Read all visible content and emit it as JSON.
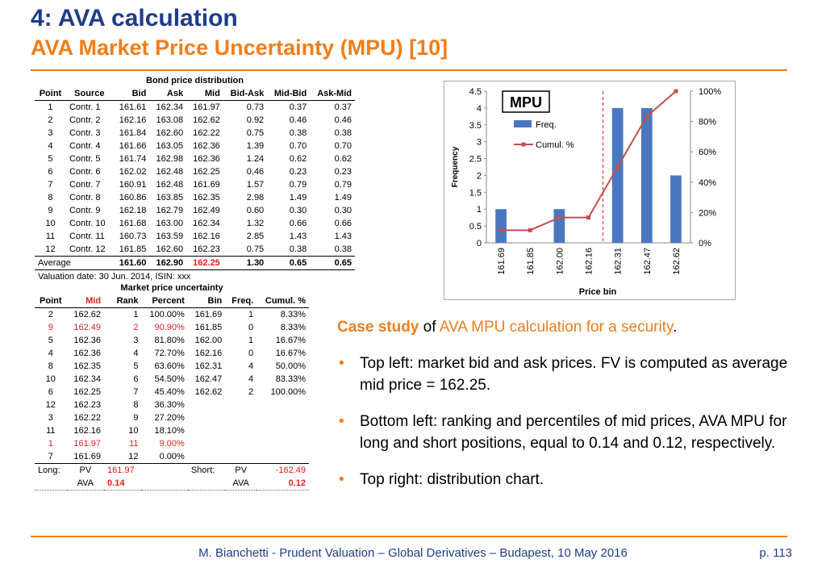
{
  "title": "4: AVA calculation",
  "subtitle": "AVA Market Price Uncertainty (MPU) [10]",
  "footer": "M. Bianchetti - Prudent Valuation – Global Derivatives – Budapest, 10 May 2016",
  "page_number": "p. 113",
  "bond_table": {
    "caption": "Bond price distribution",
    "headers": [
      "Point",
      "Source",
      "Bid",
      "Ask",
      "Mid",
      "Bid-Ask",
      "Mid-Bid",
      "Ask-Mid"
    ],
    "rows": [
      [
        "1",
        "Contr. 1",
        "161.61",
        "162.34",
        "161.97",
        "0.73",
        "0.37",
        "0.37"
      ],
      [
        "2",
        "Contr. 2",
        "162.16",
        "163.08",
        "162.62",
        "0.92",
        "0.46",
        "0.46"
      ],
      [
        "3",
        "Contr. 3",
        "161.84",
        "162.60",
        "162.22",
        "0.75",
        "0.38",
        "0.38"
      ],
      [
        "4",
        "Contr. 4",
        "161.66",
        "163.05",
        "162.36",
        "1.39",
        "0.70",
        "0.70"
      ],
      [
        "5",
        "Contr. 5",
        "161.74",
        "162.98",
        "162.36",
        "1.24",
        "0.62",
        "0.62"
      ],
      [
        "6",
        "Contr. 6",
        "162.02",
        "162.48",
        "162.25",
        "0.46",
        "0.23",
        "0.23"
      ],
      [
        "7",
        "Contr. 7",
        "160.91",
        "162.48",
        "161.69",
        "1.57",
        "0.79",
        "0.79"
      ],
      [
        "8",
        "Contr. 8",
        "160.86",
        "163.85",
        "162.35",
        "2.98",
        "1.49",
        "1.49"
      ],
      [
        "9",
        "Contr. 9",
        "162.18",
        "162.79",
        "162.49",
        "0.60",
        "0.30",
        "0.30"
      ],
      [
        "10",
        "Contr. 10",
        "161.68",
        "163.00",
        "162.34",
        "1.32",
        "0.66",
        "0.66"
      ],
      [
        "11",
        "Contr. 11",
        "160.73",
        "163.59",
        "162.16",
        "2.85",
        "1.43",
        "1.43"
      ],
      [
        "12",
        "Contr. 12",
        "161.85",
        "162.60",
        "162.23",
        "0.75",
        "0.38",
        "0.38"
      ]
    ],
    "average": {
      "label": "Average",
      "bid": "161.60",
      "ask": "162.90",
      "mid": "162.25",
      "bid_ask": "1.30",
      "mid_bid": "0.65",
      "ask_mid": "0.65"
    },
    "valuation_note": "Valuation date: 30 Jun. 2014, ISIN: xxx"
  },
  "mpu_table": {
    "caption": "Market price uncertainty",
    "headers": [
      "Point",
      "Mid",
      "Rank",
      "Percent",
      "Bin",
      "Freq.",
      "Cumul. %"
    ],
    "rows": [
      {
        "cells": [
          "2",
          "162.62",
          "1",
          "100.00%",
          "161.69",
          "1",
          "8.33%"
        ],
        "red": false
      },
      {
        "cells": [
          "9",
          "162.49",
          "2",
          "90.90%",
          "161.85",
          "0",
          "8.33%"
        ],
        "red": true
      },
      {
        "cells": [
          "5",
          "162.36",
          "3",
          "81.80%",
          "162.00",
          "1",
          "16.67%"
        ],
        "red": false
      },
      {
        "cells": [
          "4",
          "162.36",
          "4",
          "72.70%",
          "162.16",
          "0",
          "16.67%"
        ],
        "red": false
      },
      {
        "cells": [
          "8",
          "162.35",
          "5",
          "63.60%",
          "162.31",
          "4",
          "50.00%"
        ],
        "red": false
      },
      {
        "cells": [
          "10",
          "162.34",
          "6",
          "54.50%",
          "162.47",
          "4",
          "83.33%"
        ],
        "red": false
      },
      {
        "cells": [
          "6",
          "162.25",
          "7",
          "45.40%",
          "162.62",
          "2",
          "100.00%"
        ],
        "red": false
      },
      {
        "cells": [
          "12",
          "162.23",
          "8",
          "36.30%",
          "",
          "",
          ""
        ],
        "red": false
      },
      {
        "cells": [
          "3",
          "162.22",
          "9",
          "27.20%",
          "",
          "",
          ""
        ],
        "red": false
      },
      {
        "cells": [
          "11",
          "162.16",
          "10",
          "18.10%",
          "",
          "",
          ""
        ],
        "red": false
      },
      {
        "cells": [
          "1",
          "161.97",
          "11",
          "9.00%",
          "",
          "",
          ""
        ],
        "red": true
      },
      {
        "cells": [
          "7",
          "161.69",
          "12",
          "0.00%",
          "",
          "",
          ""
        ],
        "red": false
      }
    ],
    "long": {
      "label": "Long:",
      "pv_label": "PV",
      "pv": "161.97",
      "ava_label": "AVA",
      "ava": "0.14"
    },
    "short": {
      "label": "Short:",
      "pv_label": "PV",
      "pv": "-162.49",
      "ava_label": "AVA",
      "ava": "0.12"
    }
  },
  "chart_data": {
    "type": "bar",
    "title": "MPU",
    "xlabel": "Price bin",
    "ylabel": "Frequency",
    "categories": [
      "161.69",
      "161.85",
      "162.00",
      "162.16",
      "162.31",
      "162.47",
      "162.62"
    ],
    "series": [
      {
        "name": "Freq.",
        "type": "bar",
        "values": [
          1,
          0,
          1,
          0,
          4,
          4,
          2
        ],
        "color": "#4a78c0"
      },
      {
        "name": "Cumul. %",
        "type": "line",
        "axis": "right",
        "values": [
          8.33,
          8.33,
          16.67,
          16.67,
          50.0,
          83.33,
          100.0
        ],
        "color": "#c0504d"
      }
    ],
    "ylim": [
      0,
      4.5
    ],
    "yticks": [
      "0",
      "0.5",
      "1",
      "1.5",
      "2",
      "2.5",
      "3",
      "3.5",
      "4",
      "4.5"
    ],
    "y2lim": [
      0,
      100
    ],
    "y2ticks": [
      "0%",
      "20%",
      "40%",
      "60%",
      "80%",
      "100%"
    ],
    "marker_line": {
      "between": [
        "162.16",
        "162.31"
      ],
      "color": "#e41e1e",
      "style": "dashed"
    },
    "legend_position": "top-left"
  },
  "text": {
    "case_hl": "Case study",
    "case_of": " of ",
    "case_or": "AVA MPU calculation for a security",
    "case_end": ".",
    "bullets": [
      "Top left: market bid and ask prices. FV is computed as average mid price = 162.25.",
      "Bottom left: ranking and percentiles of mid prices, AVA MPU for long and short positions, equal to 0.14 and 0.12, respectively.",
      "Top right: distribution chart."
    ]
  }
}
